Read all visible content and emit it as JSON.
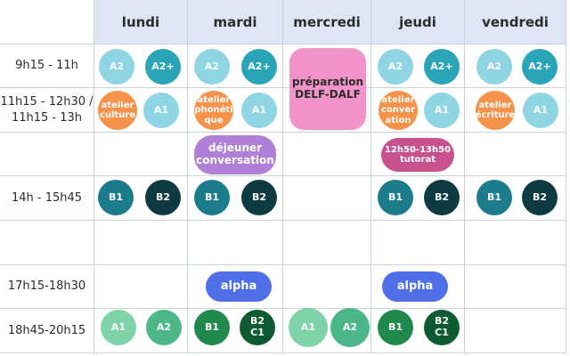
{
  "days": [
    "lundi",
    "mardi",
    "mercredi",
    "jeudi",
    "vendredi"
  ],
  "times": [
    "9h15 - 11h",
    "11h15 - 12h30 / 11h15 - 13h",
    "",
    "14h - 15h45",
    "",
    "17h15-18h30",
    "18h45-20h15"
  ],
  "colors": {
    "header_bg": "#dfe6f3",
    "a_level": "#8fd5e3",
    "a2plus": "#2aa5b8",
    "atelier": "#f7924a",
    "preparation": "#f294c9",
    "dejeuner": "#b07fd6",
    "tutorat": "#c8528e",
    "b1": "#1d7c8c",
    "b2": "#0e3b42",
    "alpha": "#4f6ee8",
    "a_evening": "#7fd3a8",
    "a2_evening": "#4cb88a",
    "b1_evening": "#1f8a4c",
    "b2c1_evening": "#0e5a32"
  },
  "badges": {
    "a2": "A2",
    "a2plus": "A2+",
    "a1": "A1",
    "b1": "B1",
    "b2": "B2",
    "b2c1": "B2 C1",
    "atelier_culture": "atelier culture",
    "atelier_phonetique": "atelier phonéti que",
    "atelier_conversation": "atelier conver ation",
    "atelier_ecriture": "atelier écriture",
    "preparation": "préparation DELF-DALF",
    "dejeuner": "déjeuner conversation",
    "tutorat": "12h50-13h50 tutorat",
    "alpha": "alpha"
  }
}
